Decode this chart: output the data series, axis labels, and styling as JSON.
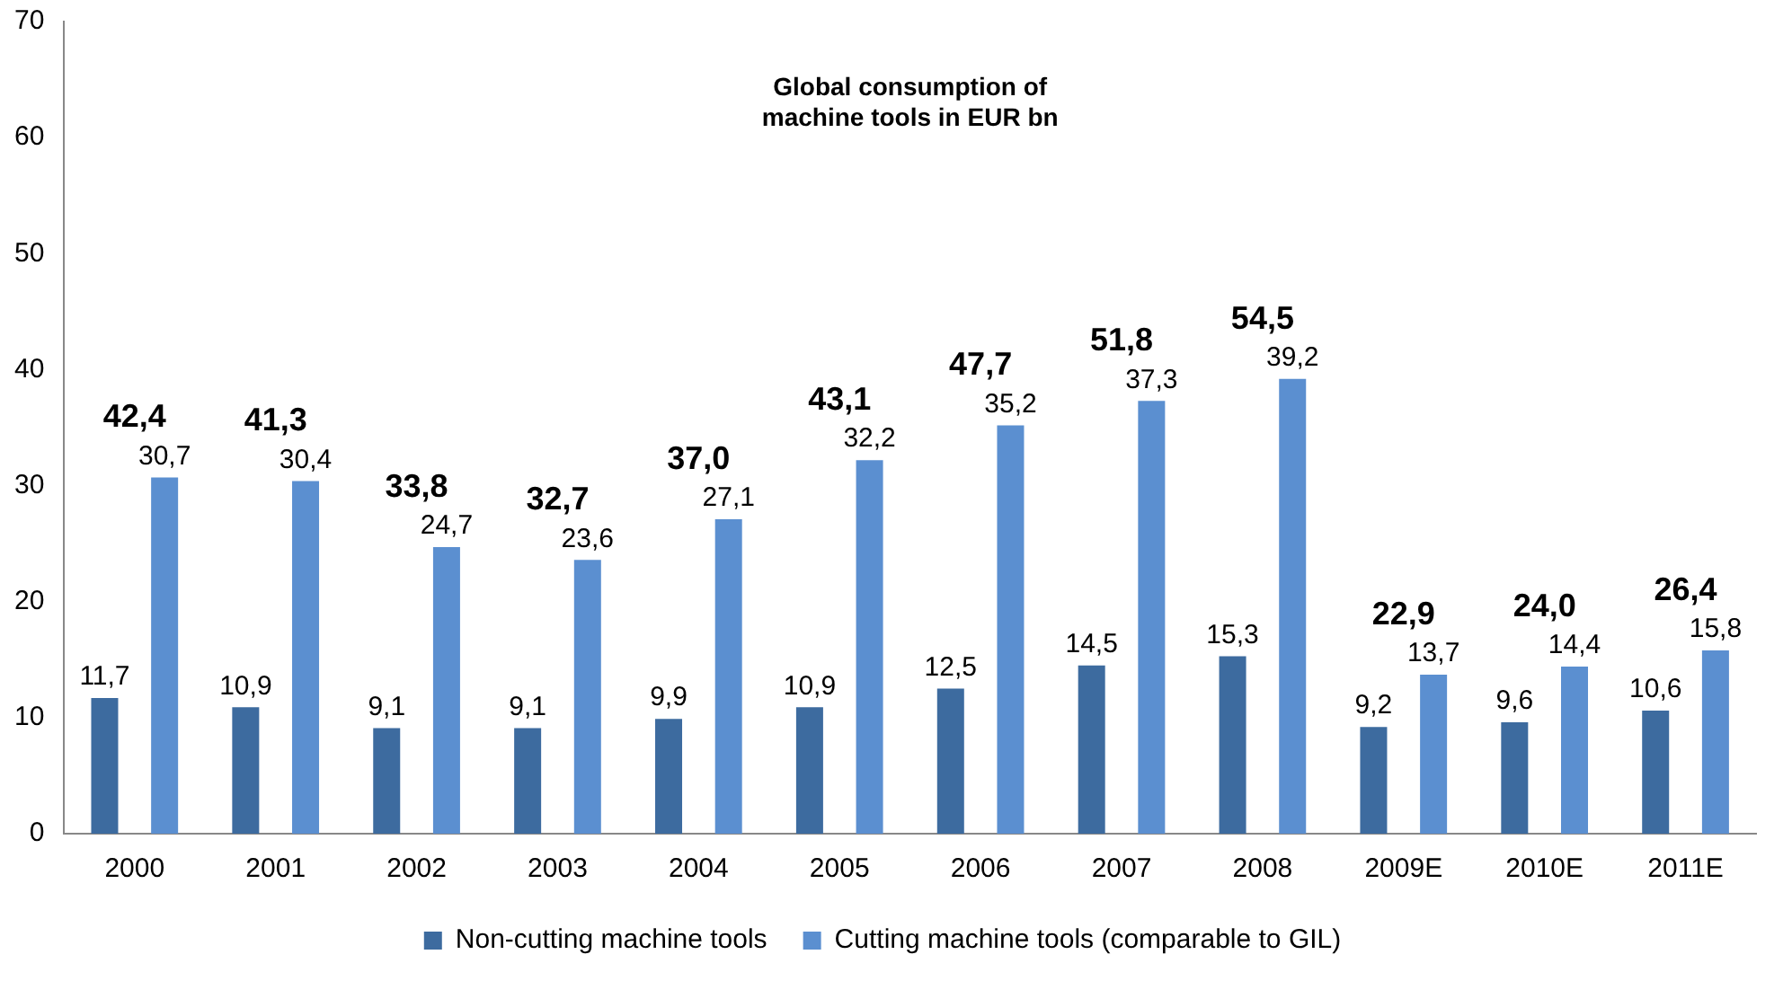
{
  "chart_data": {
    "type": "bar",
    "title": "Global consumption of\nmachine tools in EUR bn",
    "categories": [
      "2000",
      "2001",
      "2002",
      "2003",
      "2004",
      "2005",
      "2006",
      "2007",
      "2008",
      "2009E",
      "2010E",
      "2011E"
    ],
    "series": [
      {
        "name": "Non-cutting machine tools",
        "color": "#3d6b9f",
        "values": [
          11.7,
          10.9,
          9.1,
          9.1,
          9.9,
          10.9,
          12.5,
          14.5,
          15.3,
          9.2,
          9.6,
          10.6
        ],
        "value_labels": [
          "11,7",
          "10,9",
          "9,1",
          "9,1",
          "9,9",
          "10,9",
          "12,5",
          "14,5",
          "15,3",
          "9,2",
          "9,6",
          "10,6"
        ]
      },
      {
        "name": "Cutting machine tools (comparable to GIL)",
        "color": "#5b8fd0",
        "values": [
          30.7,
          30.4,
          24.7,
          23.6,
          27.1,
          32.2,
          35.2,
          37.3,
          39.2,
          13.7,
          14.4,
          15.8
        ],
        "value_labels": [
          "30,7",
          "30,4",
          "24,7",
          "23,6",
          "27,1",
          "32,2",
          "35,2",
          "37,3",
          "39,2",
          "13,7",
          "14,4",
          "15,8"
        ]
      }
    ],
    "totals": [
      "42,4",
      "41,3",
      "33,8",
      "32,7",
      "37,0",
      "43,1",
      "47,7",
      "51,8",
      "54,5",
      "22,9",
      "24,0",
      "26,4"
    ],
    "ylim": [
      0,
      70
    ],
    "yticks": [
      0,
      10,
      20,
      30,
      40,
      50,
      60,
      70
    ],
    "grid": false,
    "legend": "bottom"
  }
}
